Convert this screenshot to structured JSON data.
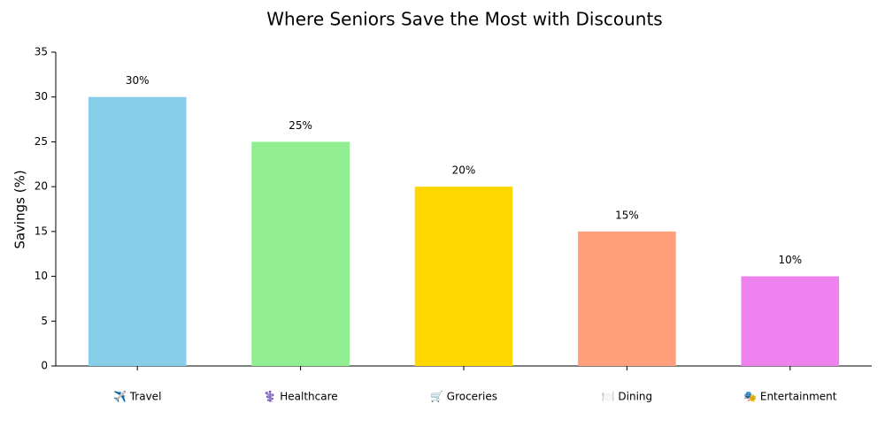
{
  "chart_data": {
    "type": "bar",
    "title": "Where Seniors Save the Most with Discounts",
    "ylabel": "Savings (%)",
    "categories": [
      "✈️ Travel",
      "⚕️ Healthcare",
      "🛒 Groceries",
      "🍽️ Dining",
      "🎭 Entertainment"
    ],
    "values": [
      30,
      25,
      20,
      15,
      10
    ],
    "value_labels": [
      "30%",
      "25%",
      "20%",
      "15%",
      "10%"
    ],
    "colors": [
      "#87ceeb",
      "#90ee90",
      "#ffd700",
      "#ffa07a",
      "#ee82ee"
    ],
    "ylim": [
      0,
      35
    ],
    "yticks": [
      0,
      5,
      10,
      15,
      20,
      25,
      30,
      35
    ],
    "grid": false
  }
}
